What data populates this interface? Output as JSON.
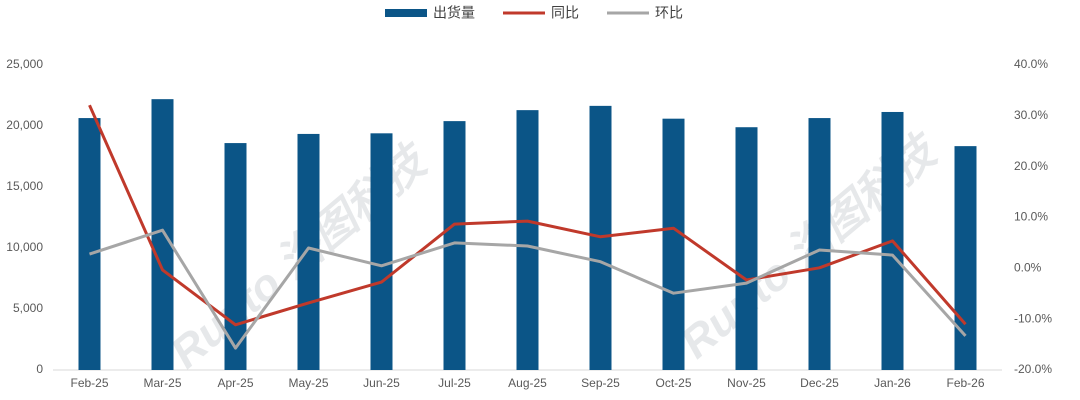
{
  "chart_data": {
    "type": "bar",
    "categories": [
      "Feb-25",
      "Mar-25",
      "Apr-25",
      "May-25",
      "Jun-25",
      "Jul-25",
      "Aug-25",
      "Sep-25",
      "Oct-25",
      "Nov-25",
      "Dec-25",
      "Jan-26",
      "Feb-26"
    ],
    "series": [
      {
        "name": "出货量",
        "type": "bar",
        "color": "#0b5587",
        "values": [
          20650,
          22200,
          18600,
          19350,
          19400,
          20400,
          21300,
          21650,
          20600,
          19900,
          20650,
          21150,
          18350
        ]
      },
      {
        "name": "同比",
        "type": "line",
        "axis": "y2",
        "color": "#c0392b",
        "values": [
          32.1,
          -0.3,
          -11.1,
          -6.8,
          -2.7,
          8.7,
          9.3,
          6.2,
          7.9,
          -2.3,
          0.1,
          5.4,
          -11.0
        ]
      },
      {
        "name": "环比",
        "type": "line",
        "axis": "y2",
        "color": "#a6a6a6",
        "values": [
          2.8,
          7.5,
          -15.7,
          4.0,
          0.5,
          5.0,
          4.4,
          1.3,
          -4.9,
          -2.9,
          3.6,
          2.6,
          -13.3
        ]
      }
    ],
    "ylim": [
      0,
      25000
    ],
    "yticks": [
      0,
      {
        "value": 5000,
        "label": "5,000"
      },
      {
        "value": 10000,
        "label": "10,000"
      },
      {
        "value": 15000,
        "label": "15,000"
      },
      {
        "value": 20000,
        "label": "20,000"
      },
      {
        "value": 25000,
        "label": "25,000"
      }
    ],
    "y2lim": [
      -20,
      40
    ],
    "y2ticks": [
      {
        "value": -20,
        "label": "-20.0%"
      },
      {
        "value": -10,
        "label": "-10.0%"
      },
      {
        "value": 0,
        "label": "0.0%"
      },
      {
        "value": 10,
        "label": "10.0%"
      },
      {
        "value": 20,
        "label": "20.0%"
      },
      {
        "value": 30,
        "label": "30.0%"
      },
      {
        "value": 40,
        "label": "40.0%"
      }
    ],
    "legend": "top",
    "watermark": "Runto 洛图科技"
  }
}
